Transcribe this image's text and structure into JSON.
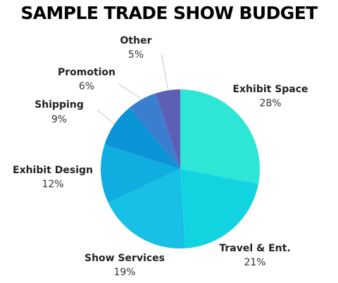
{
  "chart_data": {
    "type": "pie",
    "title": "SAMPLE TRADE SHOW BUDGET",
    "slices": [
      {
        "label": "Exhibit Space",
        "value": 28,
        "value_label": "28%",
        "color": "#2ee6d6"
      },
      {
        "label": "Travel & Ent.",
        "value": 21,
        "value_label": "21%",
        "color": "#12d4e0"
      },
      {
        "label": "Show Services",
        "value": 19,
        "value_label": "19%",
        "color": "#17c0e4"
      },
      {
        "label": "Exhibit Design",
        "value": 12,
        "value_label": "12%",
        "color": "#10aee0"
      },
      {
        "label": "Shipping",
        "value": 9,
        "value_label": "9%",
        "color": "#0a93d6"
      },
      {
        "label": "Promotion",
        "value": 6,
        "value_label": "6%",
        "color": "#3a7fcf"
      },
      {
        "label": "Other",
        "value": 5,
        "value_label": "5%",
        "color": "#5b60b4"
      }
    ]
  }
}
